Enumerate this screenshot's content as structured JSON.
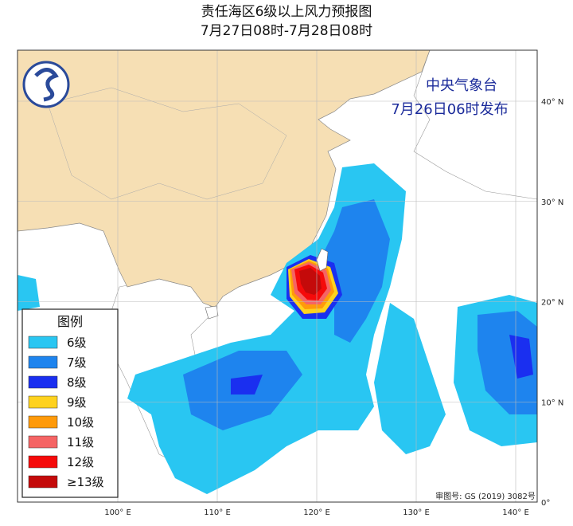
{
  "header": {
    "title": "责任海区6级以上风力预报图",
    "period": "7月27日08时-7月28日08时"
  },
  "issuer": {
    "name": "中央气象台",
    "time": "7月26日06时发布"
  },
  "legend": {
    "title": "图例",
    "items": [
      {
        "label": "6级",
        "color": "#29c6f2"
      },
      {
        "label": "7级",
        "color": "#1e84ee"
      },
      {
        "label": "8级",
        "color": "#1a2ff0"
      },
      {
        "label": "9级",
        "color": "#ffd21e"
      },
      {
        "label": "10级",
        "color": "#ff9a0a"
      },
      {
        "label": "11级",
        "color": "#f56464"
      },
      {
        "label": "12级",
        "color": "#f50a0a"
      },
      {
        "label": "≥13级",
        "color": "#c40a0a"
      }
    ]
  },
  "lon_labels": [
    "100° E",
    "110° E",
    "120° E",
    "130° E",
    "140° E"
  ],
  "lat_labels": [
    "40° N",
    "30° N",
    "20° N",
    "10° N",
    "0°"
  ],
  "credit": "审图号: GS (2019) 3082号"
}
